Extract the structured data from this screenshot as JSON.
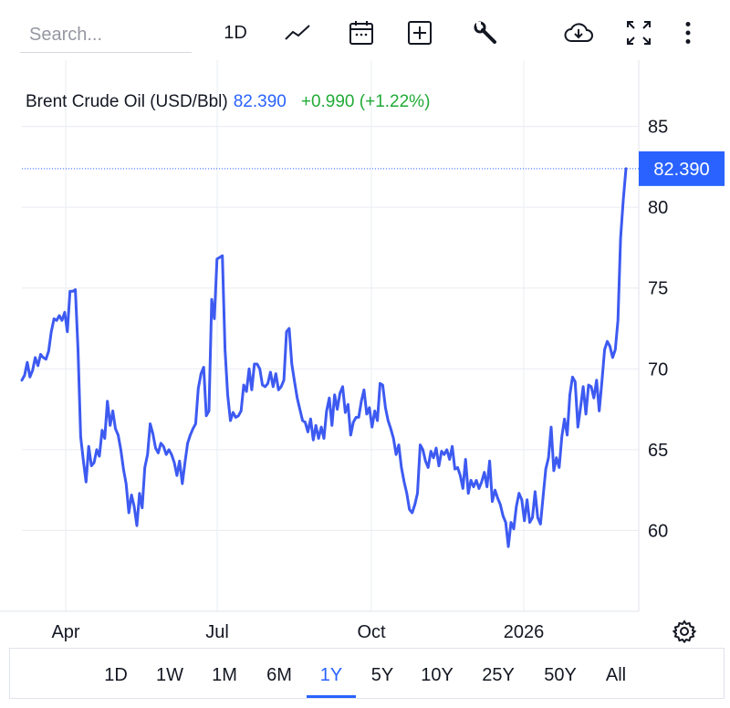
{
  "toolbar": {
    "search_placeholder": "Search...",
    "interval_label": "1D",
    "icons": [
      "line-chart-icon",
      "calendar-icon",
      "add-compare-icon",
      "wrench-icon",
      "cloud-download-icon",
      "fullscreen-icon",
      "more-vertical-icon"
    ]
  },
  "legend": {
    "symbol": "Brent Crude Oil (USD/Bbl)",
    "last": "82.390",
    "change": "+0.990 (+1.22%)"
  },
  "colors": {
    "line": "#3d5af1",
    "price_tag": "#2962ff",
    "up": "#22ab37",
    "grid": "#e9ecf1",
    "axis_text": "#131722"
  },
  "ranges": [
    "1D",
    "1W",
    "1M",
    "6M",
    "1Y",
    "5Y",
    "10Y",
    "25Y",
    "50Y",
    "All"
  ],
  "active_range": "1Y",
  "chart_data": {
    "type": "line",
    "title": "Brent Crude Oil (USD/Bbl)",
    "xlabel": "",
    "ylabel": "",
    "x_ticks": [
      "Apr",
      "Jul",
      "Oct",
      "2026"
    ],
    "y_ticks": [
      60,
      65,
      70,
      75,
      80,
      85
    ],
    "ylim": [
      55.0,
      89.1
    ],
    "last_value_label": "82.390",
    "grid": true,
    "series": [
      {
        "values": [
          69.3,
          69.6,
          70.4,
          69.5,
          69.9,
          70.7,
          70.2,
          70.9,
          70.7,
          70.6,
          71.1,
          72.3,
          73.1,
          73.0,
          73.3,
          73.0,
          73.5,
          72.3,
          74.8,
          74.8,
          74.9,
          71.2,
          65.8,
          64.3,
          63.0,
          65.2,
          64.0,
          64.2,
          65.0,
          64.6,
          66.2,
          65.7,
          68.0,
          66.5,
          67.4,
          66.3,
          65.9,
          65.0,
          63.8,
          62.9,
          61.1,
          62.2,
          61.5,
          60.3,
          62.3,
          61.4,
          63.9,
          64.7,
          66.6,
          66.0,
          65.1,
          64.8,
          65.4,
          65.2,
          64.7,
          65.0,
          64.7,
          64.2,
          63.4,
          64.3,
          62.9,
          64.2,
          65.4,
          65.9,
          66.3,
          66.6,
          68.8,
          69.7,
          70.1,
          67.1,
          67.4,
          74.3,
          73.1,
          76.8,
          76.9,
          77.0,
          71.2,
          68.4,
          66.8,
          67.3,
          67.0,
          67.1,
          67.4,
          69.0,
          68.6,
          70.0,
          68.7,
          70.3,
          70.3,
          70.0,
          69.0,
          68.9,
          69.1,
          69.8,
          68.9,
          69.7,
          68.7,
          68.9,
          69.3,
          72.3,
          72.5,
          70.3,
          69.2,
          68.2,
          67.5,
          66.8,
          66.7,
          66.1,
          66.9,
          65.6,
          66.5,
          65.7,
          66.4,
          65.7,
          67.4,
          68.2,
          66.5,
          68.4,
          67.5,
          68.5,
          68.9,
          67.3,
          67.8,
          65.9,
          66.7,
          67.0,
          67.0,
          68.0,
          68.7,
          67.2,
          67.6,
          66.4,
          67.4,
          66.8,
          69.1,
          69.0,
          67.6,
          66.8,
          66.3,
          65.7,
          64.7,
          65.3,
          63.9,
          63.0,
          62.3,
          61.3,
          61.1,
          61.6,
          62.3,
          65.3,
          65.0,
          64.3,
          63.9,
          64.9,
          64.5,
          65.1,
          64.0,
          64.9,
          64.7,
          65.0,
          64.4,
          65.2,
          63.8,
          63.9,
          63.4,
          62.6,
          64.4,
          62.3,
          63.1,
          62.7,
          63.1,
          62.6,
          63.0,
          63.6,
          62.7,
          64.3,
          61.8,
          62.5,
          62.0,
          61.6,
          60.9,
          60.5,
          59.0,
          60.5,
          60.1,
          61.5,
          62.3,
          61.9,
          60.6,
          61.9,
          60.5,
          60.8,
          62.4,
          60.8,
          60.4,
          62.1,
          63.8,
          64.5,
          66.4,
          63.7,
          64.5,
          63.9,
          65.8,
          66.9,
          65.9,
          68.4,
          69.5,
          69.2,
          66.4,
          67.6,
          68.9,
          67.2,
          69.0,
          68.9,
          68.2,
          69.3,
          67.4,
          69.2,
          71.2,
          71.7,
          71.4,
          70.7,
          71.2,
          73.0,
          78.1,
          80.5,
          82.39
        ]
      }
    ]
  }
}
